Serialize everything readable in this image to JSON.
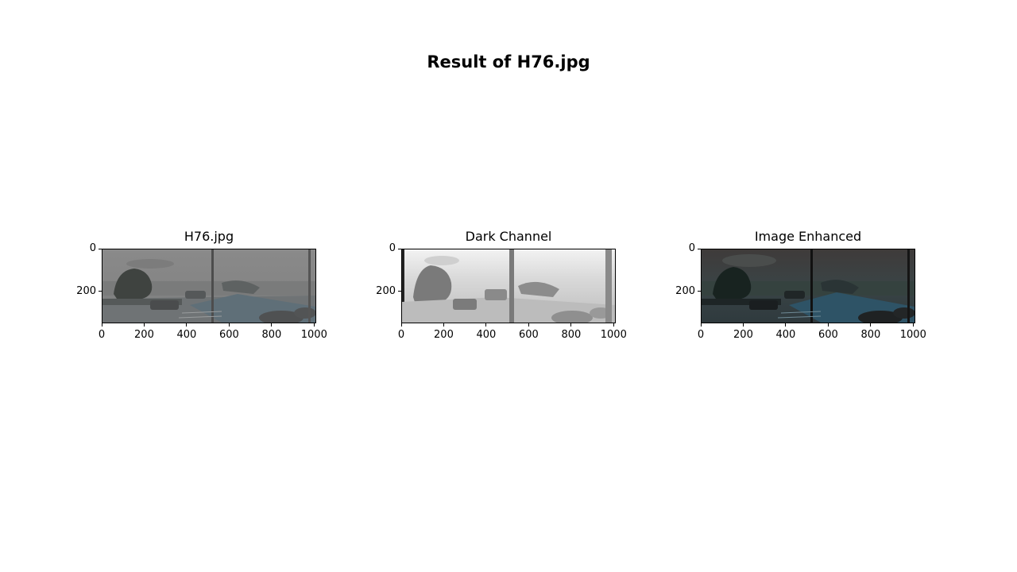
{
  "figure": {
    "title": "Result of H76.jpg"
  },
  "axis_scale": {
    "x_max": 1010,
    "y_max": 350
  },
  "panels": [
    {
      "title": "H76.jpg",
      "image": "hazy-street-scene-original",
      "x_ticks": [
        0,
        200,
        400,
        600,
        800,
        1000
      ],
      "y_ticks": [
        0,
        200
      ]
    },
    {
      "title": "Dark Channel",
      "image": "dark-channel-grayscale-map",
      "x_ticks": [
        0,
        200,
        400,
        600,
        800,
        1000
      ],
      "y_ticks": [
        0,
        200
      ]
    },
    {
      "title": "Image Enhanced",
      "image": "dehazed-street-scene",
      "x_ticks": [
        0,
        200,
        400,
        600,
        800,
        1000
      ],
      "y_ticks": [
        0,
        200
      ]
    }
  ]
}
